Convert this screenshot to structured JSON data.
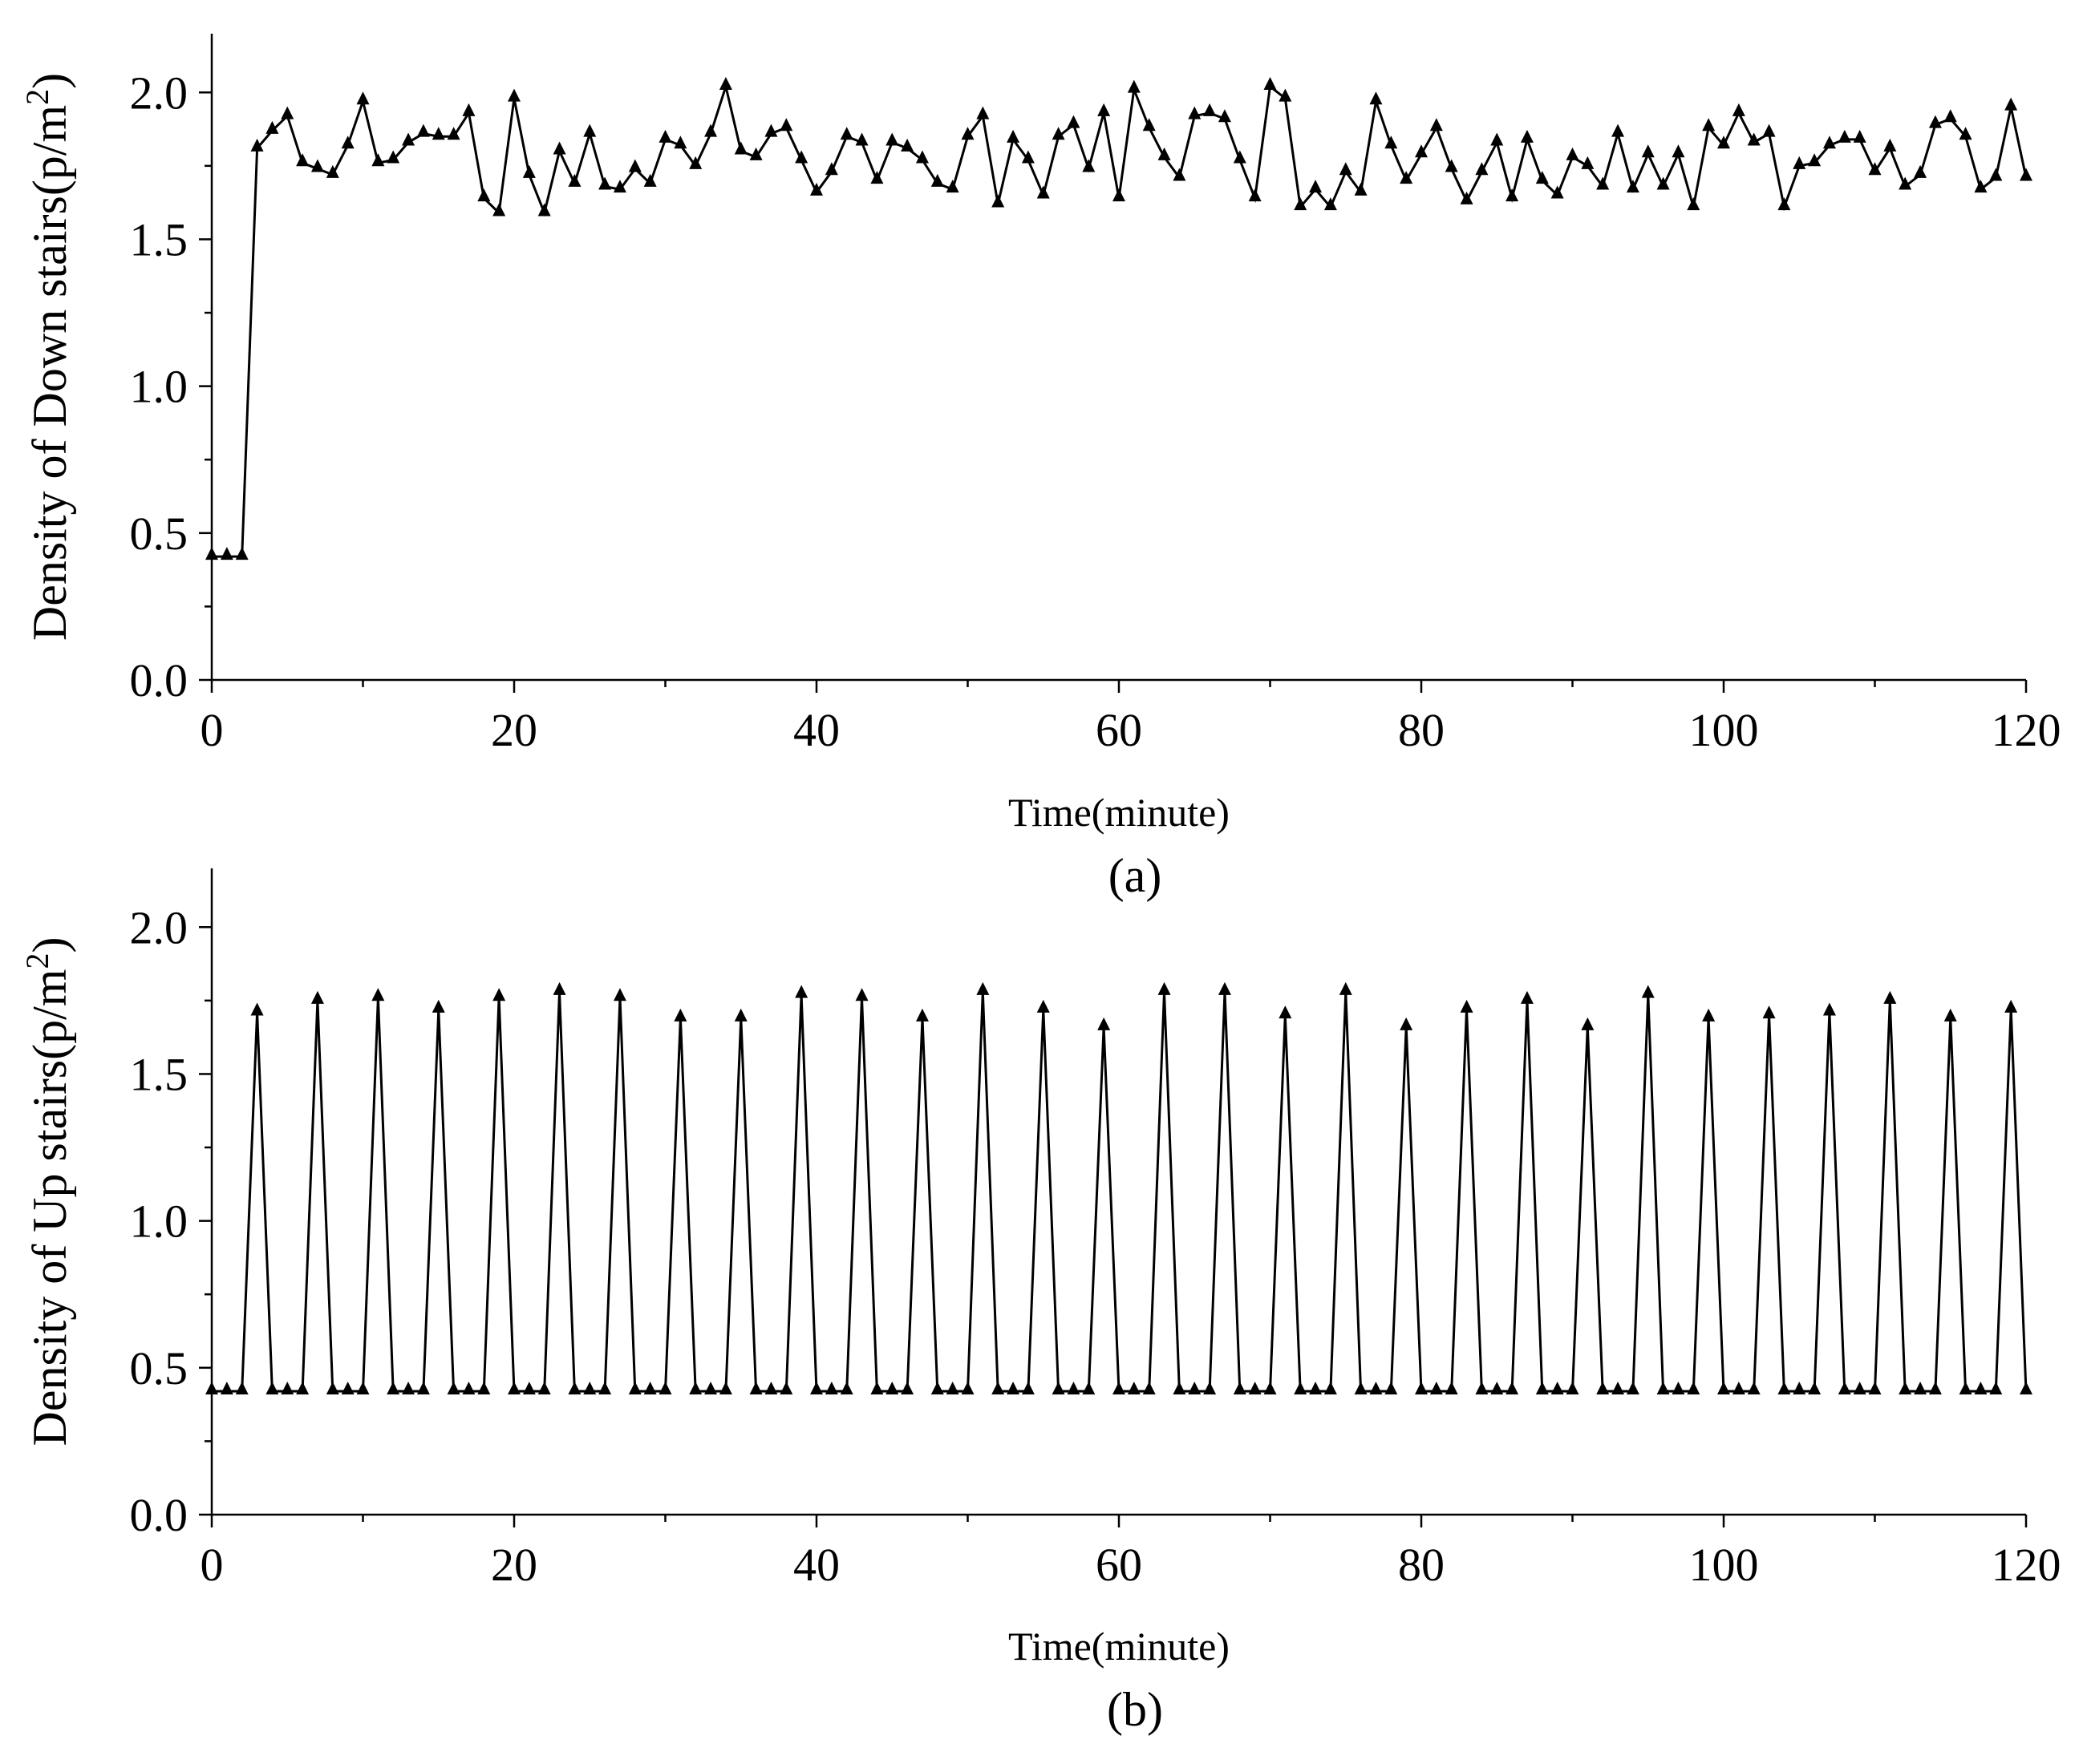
{
  "chart_data": [
    {
      "type": "line",
      "caption": "(a)",
      "xlabel": "Time(minute)",
      "ylabel": "Density of Down stairs(p/m",
      "ylabel_sup": "2",
      "ylabel_end": ")",
      "xlim": [
        0,
        120
      ],
      "ylim": [
        0,
        2.2
      ],
      "xticks": [
        0,
        20,
        40,
        60,
        80,
        100,
        120
      ],
      "xtick_labels": [
        "0",
        "20",
        "40",
        "60",
        "80",
        "100",
        "120"
      ],
      "yticks": [
        0.0,
        0.5,
        1.0,
        1.5,
        2.0
      ],
      "ytick_labels": [
        "0.0",
        "0.5",
        "1.0",
        "1.5",
        "2.0"
      ],
      "x_minor_step": 10,
      "y_minor_step": 0.25,
      "marker": "triangle",
      "color": "#000000",
      "grid": false,
      "series": [
        {
          "x": [
            0,
            1,
            2,
            3,
            4,
            5,
            6,
            7,
            8,
            9,
            10,
            11,
            12,
            13,
            14,
            15,
            16,
            17,
            18,
            19,
            20,
            21,
            22,
            23,
            24,
            25,
            26,
            27,
            28,
            29,
            30,
            31,
            32,
            33,
            34,
            35,
            36,
            37,
            38,
            39,
            40,
            41,
            42,
            43,
            44,
            45,
            46,
            47,
            48,
            49,
            50,
            51,
            52,
            53,
            54,
            55,
            56,
            57,
            58,
            59,
            60,
            61,
            62,
            63,
            64,
            65,
            66,
            67,
            68,
            69,
            70,
            71,
            72,
            73,
            74,
            75,
            76,
            77,
            78,
            79,
            80,
            81,
            82,
            83,
            84,
            85,
            86,
            87,
            88,
            89,
            90,
            91,
            92,
            93,
            94,
            95,
            96,
            97,
            98,
            99,
            100,
            101,
            102,
            103,
            104,
            105,
            106,
            107,
            108,
            109,
            110,
            111,
            112,
            113,
            114,
            115,
            116,
            117,
            118,
            119,
            120
          ],
          "values": [
            0.42,
            0.42,
            0.42,
            1.81,
            1.87,
            1.92,
            1.76,
            1.74,
            1.72,
            1.82,
            1.97,
            1.76,
            1.77,
            1.83,
            1.86,
            1.85,
            1.85,
            1.93,
            1.64,
            1.59,
            1.98,
            1.72,
            1.59,
            1.8,
            1.69,
            1.86,
            1.68,
            1.67,
            1.74,
            1.69,
            1.84,
            1.82,
            1.75,
            1.86,
            2.02,
            1.8,
            1.78,
            1.86,
            1.88,
            1.77,
            1.66,
            1.73,
            1.85,
            1.83,
            1.7,
            1.83,
            1.81,
            1.77,
            1.69,
            1.67,
            1.85,
            1.92,
            1.62,
            1.84,
            1.77,
            1.65,
            1.85,
            1.89,
            1.74,
            1.93,
            1.64,
            2.01,
            1.88,
            1.78,
            1.71,
            1.92,
            1.93,
            1.91,
            1.77,
            1.64,
            2.02,
            1.98,
            1.61,
            1.67,
            1.61,
            1.73,
            1.66,
            1.97,
            1.82,
            1.7,
            1.79,
            1.88,
            1.74,
            1.63,
            1.73,
            1.83,
            1.64,
            1.84,
            1.7,
            1.65,
            1.78,
            1.75,
            1.68,
            1.86,
            1.67,
            1.79,
            1.68,
            1.79,
            1.61,
            1.88,
            1.82,
            1.93,
            1.83,
            1.86,
            1.61,
            1.75,
            1.76,
            1.82,
            1.84,
            1.84,
            1.73,
            1.81,
            1.68,
            1.72,
            1.89,
            1.91,
            1.85,
            1.67,
            1.71,
            1.95,
            1.71
          ]
        }
      ]
    },
    {
      "type": "line",
      "caption": "(b)",
      "xlabel": "Time(minute)",
      "ylabel": "Density of Up stairs(p/m",
      "ylabel_sup": "2",
      "ylabel_end": ")",
      "xlim": [
        0,
        120
      ],
      "ylim": [
        0,
        2.2
      ],
      "xticks": [
        0,
        20,
        40,
        60,
        80,
        100,
        120
      ],
      "xtick_labels": [
        "0",
        "20",
        "40",
        "60",
        "80",
        "100",
        "120"
      ],
      "yticks": [
        0.0,
        0.5,
        1.0,
        1.5,
        2.0
      ],
      "ytick_labels": [
        "0.0",
        "0.5",
        "1.0",
        "1.5",
        "2.0"
      ],
      "x_minor_step": 10,
      "y_minor_step": 0.25,
      "marker": "triangle",
      "color": "#000000",
      "grid": false,
      "series": [
        {
          "x": [
            0,
            1,
            2,
            3,
            4,
            5,
            6,
            7,
            8,
            9,
            10,
            11,
            12,
            13,
            14,
            15,
            16,
            17,
            18,
            19,
            20,
            21,
            22,
            23,
            24,
            25,
            26,
            27,
            28,
            29,
            30,
            31,
            32,
            33,
            34,
            35,
            36,
            37,
            38,
            39,
            40,
            41,
            42,
            43,
            44,
            45,
            46,
            47,
            48,
            49,
            50,
            51,
            52,
            53,
            54,
            55,
            56,
            57,
            58,
            59,
            60,
            61,
            62,
            63,
            64,
            65,
            66,
            67,
            68,
            69,
            70,
            71,
            72,
            73,
            74,
            75,
            76,
            77,
            78,
            79,
            80,
            81,
            82,
            83,
            84,
            85,
            86,
            87,
            88,
            89,
            90,
            91,
            92,
            93,
            94,
            95,
            96,
            97,
            98,
            99,
            100,
            101,
            102,
            103,
            104,
            105,
            106,
            107,
            108,
            109,
            110,
            111,
            112,
            113,
            114,
            115,
            116,
            117,
            118,
            119,
            120
          ],
          "values": [
            0.42,
            0.42,
            0.42,
            1.71,
            0.42,
            0.42,
            0.42,
            1.75,
            0.42,
            0.42,
            0.42,
            1.76,
            0.42,
            0.42,
            0.42,
            1.72,
            0.42,
            0.42,
            0.42,
            1.76,
            0.42,
            0.42,
            0.42,
            1.78,
            0.42,
            0.42,
            0.42,
            1.76,
            0.42,
            0.42,
            0.42,
            1.69,
            0.42,
            0.42,
            0.42,
            1.69,
            0.42,
            0.42,
            0.42,
            1.77,
            0.42,
            0.42,
            0.42,
            1.76,
            0.42,
            0.42,
            0.42,
            1.69,
            0.42,
            0.42,
            0.42,
            1.78,
            0.42,
            0.42,
            0.42,
            1.72,
            0.42,
            0.42,
            0.42,
            1.66,
            0.42,
            0.42,
            0.42,
            1.78,
            0.42,
            0.42,
            0.42,
            1.78,
            0.42,
            0.42,
            0.42,
            1.7,
            0.42,
            0.42,
            0.42,
            1.78,
            0.42,
            0.42,
            0.42,
            1.66,
            0.42,
            0.42,
            0.42,
            1.72,
            0.42,
            0.42,
            0.42,
            1.75,
            0.42,
            0.42,
            0.42,
            1.66,
            0.42,
            0.42,
            0.42,
            1.77,
            0.42,
            0.42,
            0.42,
            1.69,
            0.42,
            0.42,
            0.42,
            1.7,
            0.42,
            0.42,
            0.42,
            1.71,
            0.42,
            0.42,
            0.42,
            1.75,
            0.42,
            0.42,
            0.42,
            1.69,
            0.42,
            0.42,
            0.42,
            1.72,
            0.42
          ]
        }
      ]
    }
  ]
}
